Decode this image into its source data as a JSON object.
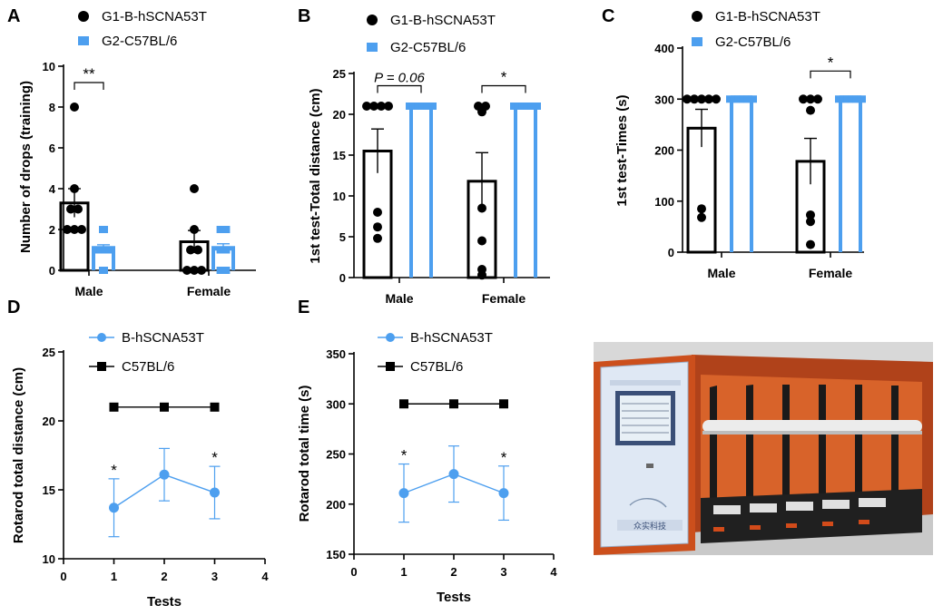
{
  "colors": {
    "g1": "#000000",
    "g2": "#4d9fef"
  },
  "panels": {
    "A": {
      "label": "A",
      "legend": [
        "G1-B-hSCNA53T",
        "G2-C57BL/6"
      ],
      "chart_data": {
        "type": "bar",
        "ylabel": "Number of drops (training)",
        "xlabel": "",
        "ylim": [
          0,
          10
        ],
        "yticks": [
          0,
          2,
          4,
          6,
          8,
          10
        ],
        "categories": [
          "Male",
          "Female"
        ],
        "series": [
          {
            "name": "G1-B-hSCNA53T",
            "means": [
              3.3,
              1.4
            ],
            "sem": [
              0.7,
              0.55
            ],
            "points": [
              [
                8,
                4,
                3,
                3,
                2,
                2,
                2
              ],
              [
                4,
                2,
                1,
                1,
                0,
                0,
                0
              ]
            ]
          },
          {
            "name": "G2-C57BL/6",
            "means": [
              1.1,
              1.1
            ],
            "sem": [
              0.15,
              0.2
            ],
            "points": [
              [
                2,
                1,
                1,
                1,
                1,
                0
              ],
              [
                2,
                2,
                1,
                1,
                0,
                0
              ]
            ]
          }
        ],
        "annotations": [
          {
            "category": "Male",
            "text": "**"
          }
        ]
      }
    },
    "B": {
      "label": "B",
      "legend": [
        "G1-B-hSCNA53T",
        "G2-C57BL/6"
      ],
      "chart_data": {
        "type": "bar",
        "ylabel": "1st test-Total distance (cm)",
        "xlabel": "",
        "ylim": [
          0,
          25
        ],
        "yticks": [
          0,
          5,
          10,
          15,
          20,
          25
        ],
        "categories": [
          "Male",
          "Female"
        ],
        "series": [
          {
            "name": "G1-B-hSCNA53T",
            "means": [
              15.5,
              11.8
            ],
            "sem": [
              2.7,
              3.5
            ],
            "points": [
              [
                21,
                21,
                21,
                21,
                8,
                6.2,
                4.8
              ],
              [
                21,
                20.3,
                21,
                8.5,
                4.5,
                1,
                0.3
              ]
            ]
          },
          {
            "name": "G2-C57BL/6",
            "means": [
              21,
              21
            ],
            "sem": [
              0,
              0
            ],
            "points": [
              [
                21,
                21,
                21,
                21,
                21,
                21
              ],
              [
                21,
                21,
                21,
                21,
                21,
                21
              ]
            ]
          }
        ],
        "annotations": [
          {
            "category": "Male",
            "text": "P = 0.06"
          },
          {
            "category": "Female",
            "text": "*"
          }
        ]
      }
    },
    "C": {
      "label": "C",
      "legend": [
        "G1-B-hSCNA53T",
        "G2-C57BL/6"
      ],
      "chart_data": {
        "type": "bar",
        "ylabel": "1st test-Times (s)",
        "xlabel": "",
        "ylim": [
          0,
          400
        ],
        "yticks": [
          0,
          100,
          200,
          300,
          400
        ],
        "categories": [
          "Male",
          "Female"
        ],
        "series": [
          {
            "name": "G1-B-hSCNA53T",
            "means": [
              243,
              178
            ],
            "sem": [
              37,
              45
            ],
            "points": [
              [
                300,
                300,
                300,
                300,
                300,
                85,
                68
              ],
              [
                300,
                300,
                300,
                278,
                73,
                60,
                15
              ]
            ]
          },
          {
            "name": "G2-C57BL/6",
            "means": [
              300,
              300
            ],
            "sem": [
              0,
              0
            ],
            "points": [
              [
                300,
                300,
                300,
                300,
                300,
                300
              ],
              [
                300,
                300,
                300,
                300,
                300,
                300
              ]
            ]
          }
        ],
        "annotations": [
          {
            "category": "Female",
            "text": "*"
          }
        ]
      }
    },
    "D": {
      "label": "D",
      "legend": [
        "B-hSCNA53T",
        "C57BL/6"
      ],
      "chart_data": {
        "type": "line",
        "xlabel": "Tests",
        "ylabel": "Rotarod total distance (cm)",
        "xlim": [
          0,
          4
        ],
        "ylim": [
          10,
          25
        ],
        "xticks": [
          0,
          1,
          2,
          3,
          4
        ],
        "yticks": [
          10,
          15,
          20,
          25
        ],
        "series": [
          {
            "name": "B-hSCNA53T",
            "x": [
              1,
              2,
              3
            ],
            "y": [
              13.7,
              16.1,
              14.8
            ],
            "err": [
              2.1,
              1.9,
              1.9
            ]
          },
          {
            "name": "C57BL/6",
            "x": [
              1,
              2,
              3
            ],
            "y": [
              21,
              21,
              21
            ],
            "err": [
              0,
              0,
              0
            ]
          }
        ],
        "annotations": [
          {
            "x": 1,
            "text": "*"
          },
          {
            "x": 3,
            "text": "*"
          }
        ]
      }
    },
    "E": {
      "label": "E",
      "legend": [
        "B-hSCNA53T",
        "C57BL/6"
      ],
      "chart_data": {
        "type": "line",
        "xlabel": "Tests",
        "ylabel": "Rotarod total time (s)",
        "xlim": [
          0,
          4
        ],
        "ylim": [
          150,
          350
        ],
        "xticks": [
          0,
          1,
          2,
          3,
          4
        ],
        "yticks": [
          150,
          200,
          250,
          300,
          350
        ],
        "series": [
          {
            "name": "B-hSCNA53T",
            "x": [
              1,
              2,
              3
            ],
            "y": [
              211,
              230,
              211
            ],
            "err": [
              29,
              28,
              27
            ]
          },
          {
            "name": "C57BL/6",
            "x": [
              1,
              2,
              3
            ],
            "y": [
              300,
              300,
              300
            ],
            "err": [
              0,
              0,
              0
            ]
          }
        ],
        "annotations": [
          {
            "x": 1,
            "text": "*"
          },
          {
            "x": 3,
            "text": "*"
          }
        ]
      }
    }
  },
  "photo": {
    "device_label": "众实科技"
  }
}
